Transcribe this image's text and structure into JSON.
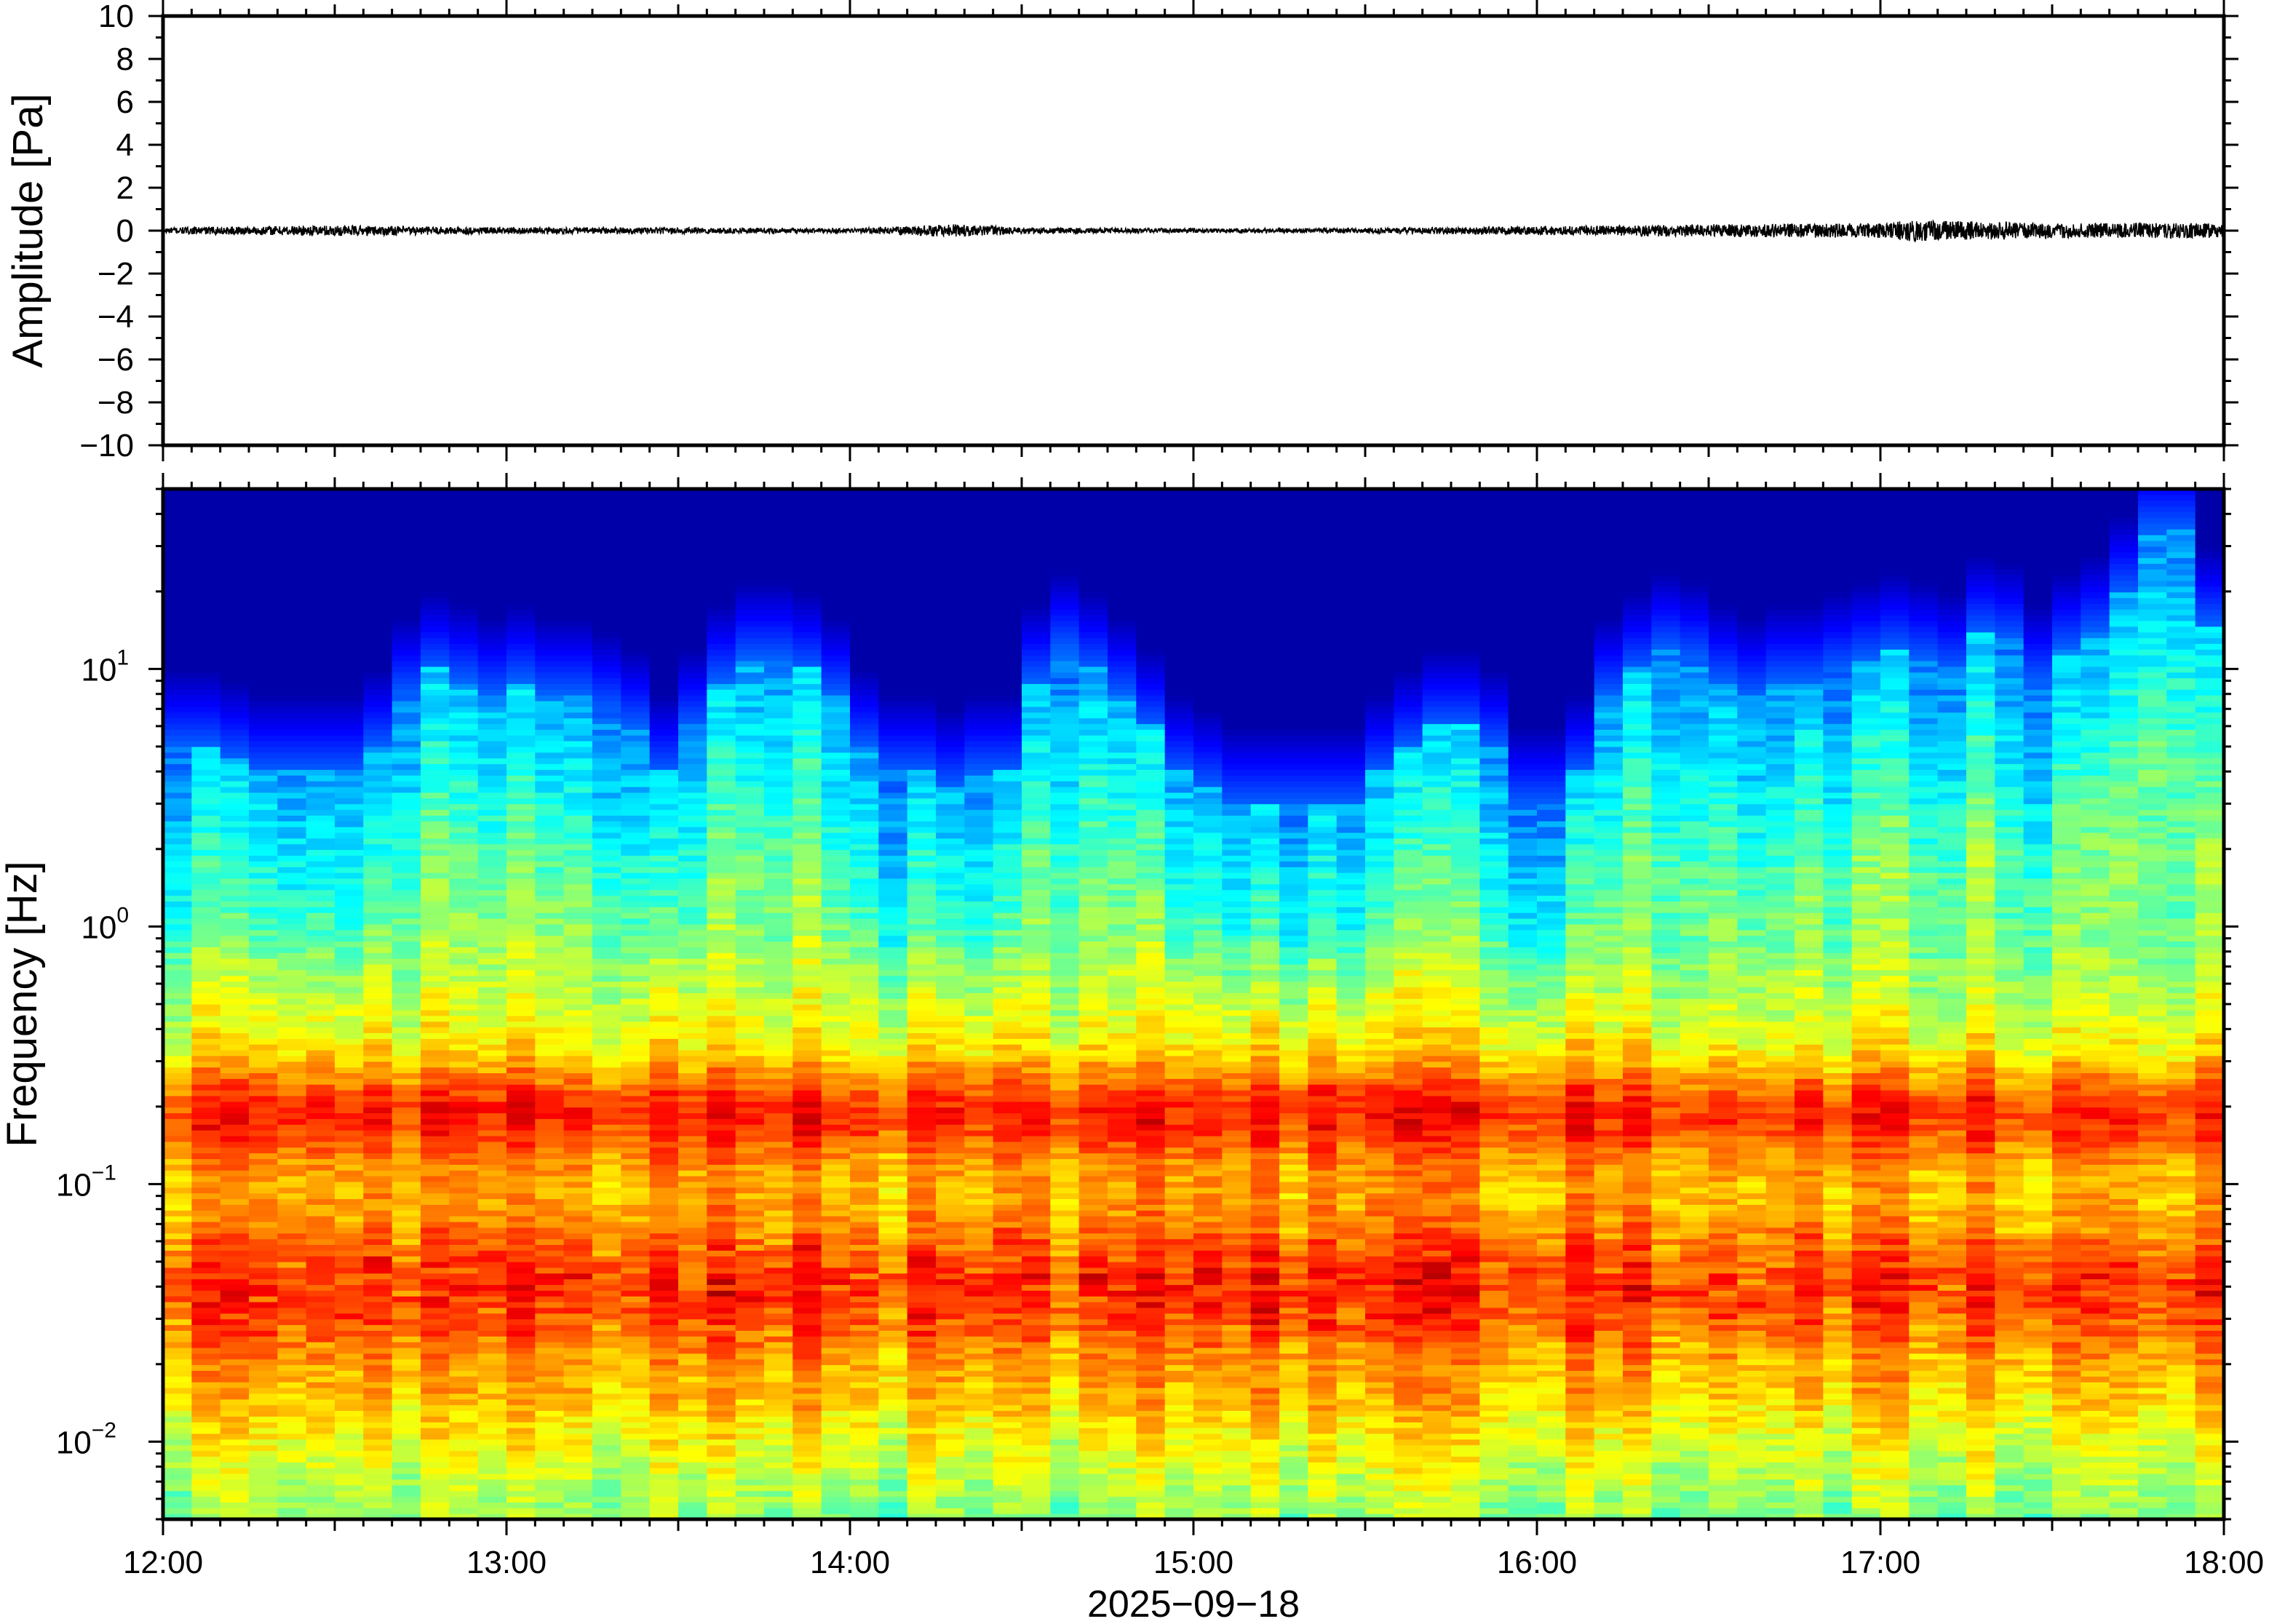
{
  "chart_data": [
    {
      "type": "line",
      "title": "",
      "xlabel": "",
      "ylabel": "Amplitude [Pa]",
      "ylim": [
        -10,
        10
      ],
      "yticks": [
        "−10",
        "−8",
        "−6",
        "−4",
        "−2",
        "0",
        "2",
        "4",
        "6",
        "8",
        "10"
      ],
      "ytick_values": [
        -10,
        -8,
        -6,
        -4,
        -2,
        0,
        2,
        4,
        6,
        8,
        10
      ],
      "series": [
        {
          "color": "#000000",
          "description_values": {
            "x_hours": [
              12.0,
              12.5,
              13.0,
              13.5,
              14.0,
              14.3,
              14.5,
              15.0,
              15.5,
              16.0,
              16.5,
              17.0,
              17.1,
              17.5,
              18.0
            ],
            "envelope_pa": [
              0.15,
              0.25,
              0.15,
              0.15,
              0.1,
              0.3,
              0.15,
              0.1,
              0.12,
              0.2,
              0.3,
              0.35,
              0.5,
              0.35,
              0.35
            ]
          }
        }
      ]
    },
    {
      "type": "heatmap",
      "title": "",
      "xlabel": "2025−09−18",
      "ylabel": "Frequency [Hz]",
      "y_scale": "log",
      "ylim": [
        0.005,
        50
      ],
      "yticks": [
        {
          "base": "10",
          "exp": "1",
          "value": 10
        },
        {
          "base": "10",
          "exp": "0",
          "value": 1
        },
        {
          "base": "10",
          "exp": "−1",
          "value": 0.1
        },
        {
          "base": "10",
          "exp": "−2",
          "value": 0.01
        }
      ],
      "xlim": [
        "12:00",
        "18:00"
      ],
      "xticks": [
        "12:00",
        "13:00",
        "14:00",
        "15:00",
        "16:00",
        "17:00",
        "18:00"
      ],
      "colormap": "jet",
      "colors": {
        "low": "#0b0078",
        "high": "#ff6a1c"
      },
      "time_columns": 72,
      "upper_energy_edge_hz": [
        5,
        5,
        4.5,
        4,
        4,
        4,
        4,
        5,
        8,
        10,
        9,
        8,
        9,
        8,
        8,
        7,
        6,
        4,
        6,
        9,
        11,
        11,
        10,
        8,
        5,
        4,
        4,
        3.5,
        4,
        4,
        9,
        12,
        10,
        8,
        6,
        4,
        3.5,
        3,
        3,
        3,
        3,
        3,
        4,
        5,
        6,
        6,
        5,
        3,
        3,
        4,
        8,
        10,
        12,
        11,
        9,
        8,
        9,
        9,
        10,
        11,
        12,
        11,
        10,
        14,
        13,
        9,
        12,
        14,
        20,
        35,
        35,
        15
      ],
      "mid_band_hz": [
        0.1,
        0.3
      ],
      "low_band_peak_hz": [
        0.02,
        0.08
      ]
    }
  ]
}
